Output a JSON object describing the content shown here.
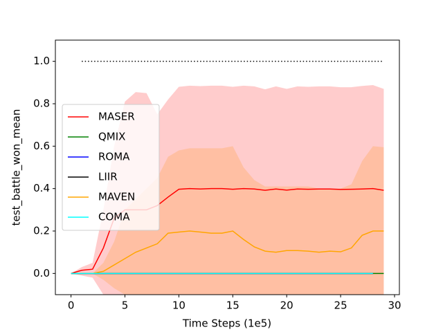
{
  "chart_data": {
    "type": "line",
    "xlabel": "Time Steps (1e5)",
    "ylabel": "test_battle_won_mean",
    "x": [
      0,
      1,
      2,
      3,
      4,
      5,
      6,
      7,
      8,
      9,
      10,
      11,
      12,
      13,
      14,
      15,
      16,
      17,
      18,
      19,
      20,
      21,
      22,
      23,
      24,
      25,
      26,
      27,
      28,
      29
    ],
    "xlim": [
      -1.45,
      30.45
    ],
    "xticks": [
      0,
      5,
      10,
      15,
      20,
      25,
      30
    ],
    "ylim": [
      -0.1,
      1.1
    ],
    "yticks": [
      {
        "value": 0,
        "label": "0.0"
      },
      {
        "value": 0.2,
        "label": "0.2"
      },
      {
        "value": 0.4,
        "label": "0.4"
      },
      {
        "value": 0.6,
        "label": "0.6"
      },
      {
        "value": 0.8,
        "label": "0.8"
      },
      {
        "value": 1,
        "label": "1.0"
      }
    ],
    "legend": "center left",
    "reference": {
      "y": 1,
      "x": [
        1,
        29
      ],
      "color": "#000000"
    },
    "series": [
      {
        "name": "MASER",
        "color": "#ff0000",
        "band_color": "#ff0000",
        "values": [
          0,
          0.015,
          0.02,
          0.12,
          0.26,
          0.3,
          0.3,
          0.3,
          0.32,
          0.36,
          0.397,
          0.4,
          0.398,
          0.4,
          0.4,
          0.397,
          0.4,
          0.398,
          0.392,
          0.398,
          0.393,
          0.398,
          0.397,
          0.398,
          0.398,
          0.396,
          0.397,
          0.398,
          0.4,
          0.392
        ],
        "upper": [
          0,
          0.03,
          0.05,
          0.3,
          0.6,
          0.81,
          0.855,
          0.85,
          0.75,
          0.82,
          0.88,
          0.885,
          0.883,
          0.885,
          0.885,
          0.88,
          0.885,
          0.882,
          0.868,
          0.882,
          0.87,
          0.882,
          0.88,
          0.882,
          0.882,
          0.878,
          0.878,
          0.884,
          0.888,
          0.87
        ],
        "lower": [
          0,
          -0.01,
          -0.02,
          -0.1,
          -0.1,
          -0.1,
          -0.1,
          -0.1,
          -0.1,
          -0.1,
          -0.1,
          -0.1,
          -0.1,
          -0.1,
          -0.1,
          -0.1,
          -0.1,
          -0.1,
          -0.1,
          -0.1,
          -0.1,
          -0.1,
          -0.1,
          -0.1,
          -0.1,
          -0.1,
          -0.1,
          -0.1,
          -0.1,
          -0.1
        ]
      },
      {
        "name": "QMIX",
        "color": "#008000",
        "values": [
          0,
          0,
          0,
          0,
          0,
          0,
          0,
          0,
          0,
          0,
          0,
          0,
          0,
          0,
          0,
          0,
          0,
          0,
          0,
          0,
          0,
          0,
          0,
          0,
          0,
          0,
          0,
          0,
          0,
          0
        ]
      },
      {
        "name": "ROMA",
        "color": "#0000ff",
        "values": [
          0,
          0,
          0,
          0,
          0,
          0,
          0,
          0,
          0,
          0,
          0,
          0,
          0,
          0,
          0,
          0,
          0,
          0,
          0,
          0,
          0,
          0,
          0,
          0,
          0,
          0,
          0,
          0,
          0,
          null
        ]
      },
      {
        "name": "LIIR",
        "color": "#000000",
        "values": [
          0,
          0,
          0,
          0,
          0,
          0,
          0,
          0,
          0,
          0,
          0,
          0,
          0,
          0,
          0,
          0,
          0,
          0,
          0,
          0,
          0,
          0,
          0,
          0,
          0,
          0,
          0,
          0,
          0,
          null
        ]
      },
      {
        "name": "MAVEN",
        "color": "#ffa500",
        "band_color": "#ff8c00",
        "values": [
          0,
          0,
          0,
          0.01,
          0.04,
          0.07,
          0.1,
          0.12,
          0.14,
          0.19,
          0.195,
          0.2,
          0.195,
          0.19,
          0.19,
          0.2,
          0.16,
          0.125,
          0.105,
          0.1,
          0.108,
          0.108,
          0.105,
          0.1,
          0.105,
          0.102,
          0.12,
          0.18,
          0.2,
          0.2
        ],
        "upper": [
          0,
          0,
          0,
          0.05,
          0.15,
          0.3,
          0.35,
          0.4,
          0.45,
          0.55,
          0.58,
          0.59,
          0.59,
          0.59,
          0.59,
          0.6,
          0.5,
          0.44,
          0.41,
          0.41,
          0.41,
          0.41,
          0.41,
          0.4,
          0.4,
          0.4,
          0.42,
          0.53,
          0.6,
          0.595
        ],
        "lower": [
          0,
          0,
          0,
          -0.03,
          -0.07,
          -0.1,
          -0.1,
          -0.1,
          -0.1,
          -0.1,
          -0.1,
          -0.1,
          -0.1,
          -0.1,
          -0.1,
          -0.1,
          -0.1,
          -0.1,
          -0.1,
          -0.1,
          -0.1,
          -0.1,
          -0.1,
          -0.1,
          -0.1,
          -0.1,
          -0.1,
          -0.1,
          -0.1,
          -0.1
        ]
      },
      {
        "name": "COMA",
        "color": "#00ffff",
        "values": [
          0,
          0,
          0,
          0,
          0,
          0,
          0,
          0,
          0,
          0,
          0,
          0,
          0,
          0,
          0,
          0,
          0,
          0,
          0,
          0,
          0,
          0,
          0,
          0,
          0,
          0,
          0,
          0,
          0,
          null
        ]
      }
    ]
  }
}
